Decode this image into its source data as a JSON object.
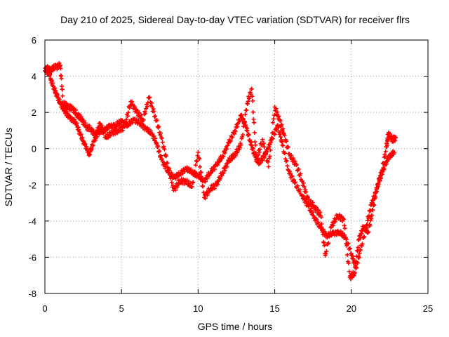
{
  "chart_data": {
    "type": "scatter",
    "title": "Day 210 of 2025, Sidereal Day-to-day VTEC variation (SDTVAR) for receiver flrs",
    "xlabel": "GPS time / hours",
    "ylabel": "SDTVAR / TECUs",
    "xlim": [
      0,
      25
    ],
    "ylim": [
      -8,
      6
    ],
    "xticks": [
      0,
      5,
      10,
      15,
      20,
      25
    ],
    "yticks": [
      -8,
      -6,
      -4,
      -2,
      0,
      2,
      4,
      6
    ],
    "grid": true,
    "marker": "+",
    "series": [
      {
        "name": "SDTVAR",
        "color": "#ff0000",
        "points": [
          [
            0.0,
            4.3
          ],
          [
            0.2,
            4.5
          ],
          [
            0.4,
            3.8
          ],
          [
            0.6,
            3.3
          ],
          [
            0.8,
            2.9
          ],
          [
            1.0,
            2.5
          ],
          [
            1.3,
            2.1
          ],
          [
            1.6,
            1.7
          ],
          [
            2.0,
            1.5
          ],
          [
            2.3,
            0.8
          ],
          [
            2.6,
            0.2
          ],
          [
            2.9,
            -0.3
          ],
          [
            3.2,
            0.4
          ],
          [
            3.5,
            0.9
          ],
          [
            3.8,
            1.0
          ],
          [
            4.2,
            1.2
          ],
          [
            4.6,
            1.3
          ],
          [
            5.0,
            1.5
          ],
          [
            5.4,
            1.3
          ],
          [
            5.8,
            1.6
          ],
          [
            6.2,
            1.4
          ],
          [
            6.6,
            1.1
          ],
          [
            7.0,
            0.8
          ],
          [
            7.3,
            0.3
          ],
          [
            7.6,
            -0.6
          ],
          [
            8.0,
            -1.2
          ],
          [
            8.4,
            -1.6
          ],
          [
            8.8,
            -1.4
          ],
          [
            9.2,
            -1.1
          ],
          [
            9.6,
            -1.3
          ],
          [
            10.0,
            -1.5
          ],
          [
            10.4,
            -1.8
          ],
          [
            10.8,
            -1.3
          ],
          [
            11.2,
            -0.9
          ],
          [
            11.6,
            -0.4
          ],
          [
            12.0,
            0.3
          ],
          [
            12.4,
            1.0
          ],
          [
            12.8,
            1.8
          ],
          [
            13.1,
            1.3
          ],
          [
            13.4,
            0.4
          ],
          [
            13.7,
            -0.4
          ],
          [
            14.0,
            -0.8
          ],
          [
            14.4,
            -0.3
          ],
          [
            14.8,
            0.5
          ],
          [
            15.2,
            1.3
          ],
          [
            15.5,
            0.2
          ],
          [
            15.9,
            -1.2
          ],
          [
            16.3,
            -1.9
          ],
          [
            16.8,
            -2.6
          ],
          [
            17.2,
            -3.2
          ],
          [
            17.6,
            -3.8
          ],
          [
            18.0,
            -4.4
          ],
          [
            18.4,
            -4.8
          ],
          [
            18.8,
            -4.7
          ],
          [
            19.2,
            -4.6
          ],
          [
            19.6,
            -4.9
          ],
          [
            20.0,
            -5.8
          ],
          [
            20.3,
            -6.6
          ],
          [
            20.6,
            -5.6
          ],
          [
            21.0,
            -4.2
          ],
          [
            21.3,
            -3.1
          ],
          [
            21.6,
            -2.4
          ],
          [
            21.9,
            -1.6
          ],
          [
            22.2,
            -0.9
          ],
          [
            22.5,
            -0.4
          ],
          [
            22.8,
            -0.2
          ]
        ],
        "alt_points": [
          [
            0.1,
            4.2
          ],
          [
            0.4,
            4.4
          ],
          [
            0.7,
            4.5
          ],
          [
            1.0,
            4.6
          ],
          [
            1.2,
            2.5
          ],
          [
            1.5,
            2.3
          ],
          [
            1.8,
            2.2
          ],
          [
            2.1,
            1.9
          ],
          [
            2.4,
            1.6
          ],
          [
            2.7,
            1.2
          ],
          [
            3.0,
            1.1
          ],
          [
            3.3,
            0.7
          ],
          [
            3.6,
            1.4
          ],
          [
            4.0,
            0.6
          ],
          [
            4.4,
            0.9
          ],
          [
            4.8,
            1.0
          ],
          [
            5.2,
            1.2
          ],
          [
            5.6,
            2.6
          ],
          [
            6.0,
            2.0
          ],
          [
            6.4,
            1.6
          ],
          [
            6.8,
            2.8
          ],
          [
            7.2,
            1.8
          ],
          [
            7.6,
            0.6
          ],
          [
            8.0,
            -0.8
          ],
          [
            8.4,
            -2.3
          ],
          [
            8.8,
            -1.8
          ],
          [
            9.2,
            -1.8
          ],
          [
            9.6,
            -2.1
          ],
          [
            10.0,
            -0.2
          ],
          [
            10.4,
            -2.7
          ],
          [
            10.8,
            -2.2
          ],
          [
            11.2,
            -2.0
          ],
          [
            11.6,
            -1.3
          ],
          [
            12.0,
            -0.7
          ],
          [
            12.4,
            -0.3
          ],
          [
            12.8,
            0.2
          ],
          [
            13.2,
            2.5
          ],
          [
            13.5,
            3.3
          ],
          [
            13.8,
            -0.7
          ],
          [
            14.2,
            0.5
          ],
          [
            14.6,
            -1.0
          ],
          [
            15.0,
            2.3
          ],
          [
            15.3,
            1.6
          ],
          [
            15.6,
            0.8
          ],
          [
            16.0,
            -0.4
          ],
          [
            16.4,
            -0.9
          ],
          [
            16.8,
            -1.8
          ],
          [
            17.2,
            -2.9
          ],
          [
            17.6,
            -3.2
          ],
          [
            18.0,
            -3.7
          ],
          [
            18.3,
            -5.9
          ],
          [
            18.7,
            -4.3
          ],
          [
            19.1,
            -3.7
          ],
          [
            19.5,
            -3.9
          ],
          [
            19.9,
            -7.1
          ],
          [
            20.2,
            -6.9
          ],
          [
            20.5,
            -5.0
          ],
          [
            20.8,
            -4.3
          ],
          [
            21.1,
            -4.6
          ],
          [
            21.4,
            -3.4
          ],
          [
            21.7,
            -2.0
          ],
          [
            22.0,
            -1.2
          ],
          [
            22.3,
            0.1
          ],
          [
            22.4,
            0.8
          ],
          [
            22.7,
            0.5
          ],
          [
            22.9,
            0.6
          ]
        ]
      }
    ]
  }
}
